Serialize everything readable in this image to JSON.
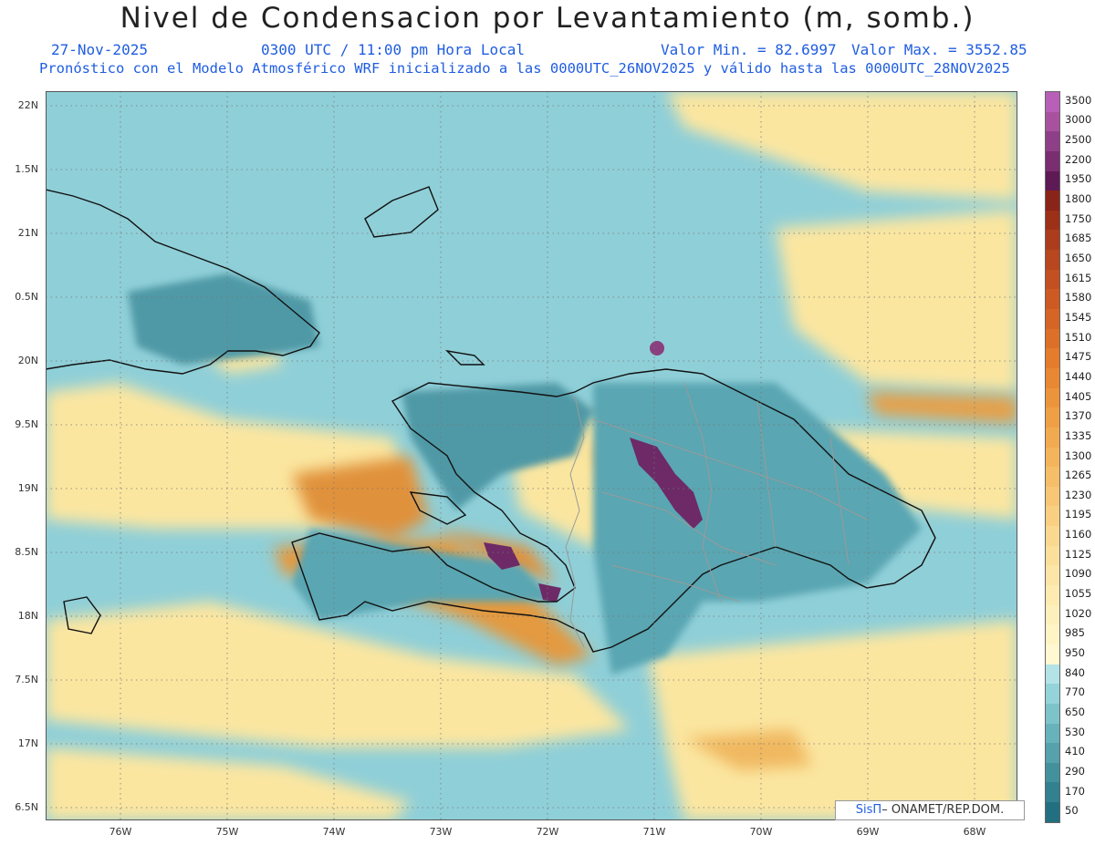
{
  "title": "Nivel de Condensacion por Levantamiento (m, somb.)",
  "date": "27-Nov-2025",
  "time": "0300 UTC / 11:00 pm Hora Local",
  "min_label": "Valor Min. = 82.6997",
  "max_label": "Valor Max. = 3552.85",
  "model_line": "Pronóstico con el Modelo Atmosférico WRF inicializado a las 0000UTC_26NOV2025 y válido hasta las  0000UTC_28NOV2025",
  "lat_labels": [
    "22N",
    "1.5N",
    "21N",
    "0.5N",
    "20N",
    "9.5N",
    "19N",
    "8.5N",
    "18N",
    "7.5N",
    "17N",
    "6.5N"
  ],
  "lon_labels": [
    "76W",
    "75W",
    "74W",
    "73W",
    "72W",
    "71W",
    "70W",
    "69W",
    "68W"
  ],
  "colorbar": {
    "labels": [
      "3500",
      "3000",
      "2500",
      "2200",
      "1950",
      "1800",
      "1750",
      "1685",
      "1650",
      "1615",
      "1580",
      "1545",
      "1510",
      "1475",
      "1440",
      "1405",
      "1370",
      "1335",
      "1300",
      "1265",
      "1230",
      "1195",
      "1160",
      "1125",
      "1090",
      "1055",
      "1020",
      "985",
      "950",
      "840",
      "770",
      "650",
      "530",
      "410",
      "290",
      "170",
      "50"
    ],
    "colors": [
      "#b860b8",
      "#a8529f",
      "#8f3f87",
      "#7a2d70",
      "#5e1a55",
      "#8a2418",
      "#9c3118",
      "#ab3d1c",
      "#b8461e",
      "#c25020",
      "#cc5a22",
      "#d56525",
      "#dc7028",
      "#e37c2d",
      "#e88834",
      "#ec943c",
      "#ef9f46",
      "#f2aa51",
      "#f4b45c",
      "#f6be68",
      "#f8c775",
      "#f9d082",
      "#fad88f",
      "#fbdf9b",
      "#fce5a6",
      "#fdebb1",
      "#fef0bc",
      "#fef4c6",
      "#fff8d0",
      "#b3e3e6",
      "#93d3d9",
      "#7dc3ca",
      "#68b2bb",
      "#55a1ac",
      "#44919e",
      "#338090",
      "#236f82"
    ]
  },
  "credit_brand": "SisΠ",
  "credit_text": " ONAMET/REP.DOM.",
  "colors": {
    "sea": "#8fcfd8",
    "land_low": "#5aa6b2",
    "land_dark": "#3f8f9d",
    "warm": "#fbe6a0",
    "orange": "#e0913a",
    "purple": "#6d2a66",
    "coast": "#111111",
    "border": "#9a9a9a"
  }
}
